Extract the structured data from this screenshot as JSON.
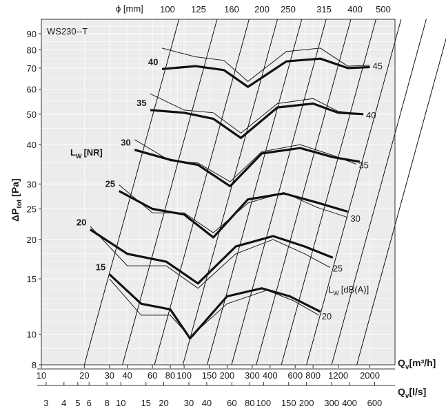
{
  "chart_data": {
    "type": "line",
    "title": "WS230--T",
    "axes": {
      "y": {
        "label_main": "ΔP",
        "label_sub": "tot",
        "label_unit": "[Pa]",
        "scale": "log",
        "range": [
          8,
          100
        ],
        "ticks": [
          8,
          10,
          15,
          20,
          25,
          30,
          40,
          50,
          60,
          70,
          80,
          90
        ]
      },
      "x_m3h": {
        "label_main": "Q",
        "label_sub": "v",
        "label_unit": "[m³/h]",
        "scale": "log",
        "range": [
          10,
          3000
        ],
        "ticks": [
          10,
          20,
          30,
          40,
          60,
          80,
          100,
          150,
          200,
          300,
          400,
          600,
          800,
          1200,
          2000
        ]
      },
      "x_ls": {
        "label_main": "Q",
        "label_sub": "v",
        "label_unit": "[l/s]",
        "scale": "log",
        "ticks": [
          3,
          4,
          5,
          6,
          8,
          10,
          15,
          20,
          30,
          40,
          60,
          80,
          100,
          150,
          200,
          300,
          400,
          600
        ]
      },
      "x_diameter": {
        "label": "ϕ [mm]",
        "ticks": [
          100,
          125,
          160,
          200,
          250,
          315,
          400,
          500
        ]
      }
    },
    "grid": true,
    "legend_lw_nr": "L",
    "legend_lw_nr_sub": "W",
    "legend_lw_nr_unit": "[NR]",
    "legend_lw_dba": "L",
    "legend_lw_dba_sub": "W",
    "legend_lw_dba_unit": "[dB(A)]",
    "nr_series": [
      {
        "name": "15",
        "values": [
          [
            30,
            15.5
          ],
          [
            50,
            12.5
          ],
          [
            80,
            12
          ],
          [
            110,
            9.7
          ],
          [
            200,
            13.2
          ],
          [
            350,
            14
          ],
          [
            550,
            13.2
          ],
          [
            900,
            11.8
          ]
        ]
      },
      {
        "name": "20",
        "values": [
          [
            22,
            21.5
          ],
          [
            40,
            18
          ],
          [
            75,
            17
          ],
          [
            125,
            14.5
          ],
          [
            230,
            19
          ],
          [
            420,
            20.5
          ],
          [
            700,
            19
          ],
          [
            1100,
            17.5
          ]
        ]
      },
      {
        "name": "25",
        "values": [
          [
            35,
            28.5
          ],
          [
            60,
            25
          ],
          [
            100,
            24
          ],
          [
            160,
            20.3
          ],
          [
            280,
            26.8
          ],
          [
            500,
            28
          ],
          [
            850,
            26.2
          ],
          [
            1400,
            24.5
          ]
        ]
      },
      {
        "name": "30",
        "values": [
          [
            45,
            38.5
          ],
          [
            80,
            35.8
          ],
          [
            125,
            34.5
          ],
          [
            210,
            29.5
          ],
          [
            350,
            37.5
          ],
          [
            650,
            39
          ],
          [
            1100,
            36.5
          ],
          [
            1700,
            35.3
          ]
        ]
      },
      {
        "name": "35",
        "values": [
          [
            58,
            51.5
          ],
          [
            100,
            50.5
          ],
          [
            160,
            48.3
          ],
          [
            250,
            42
          ],
          [
            450,
            52.5
          ],
          [
            800,
            54
          ],
          [
            1200,
            50.5
          ],
          [
            1800,
            50
          ]
        ]
      },
      {
        "name": "40",
        "values": [
          [
            70,
            69.5
          ],
          [
            120,
            71
          ],
          [
            190,
            69
          ],
          [
            280,
            61
          ],
          [
            520,
            73.5
          ],
          [
            900,
            75
          ],
          [
            1400,
            70
          ],
          [
            2000,
            70.5
          ]
        ]
      }
    ],
    "dba_series": [
      {
        "name": "20",
        "values": [
          [
            30,
            15
          ],
          [
            50,
            11.5
          ],
          [
            80,
            11.5
          ],
          [
            110,
            9.8
          ],
          [
            200,
            12.5
          ],
          [
            380,
            13.8
          ],
          [
            580,
            12.8
          ],
          [
            880,
            11.5
          ]
        ]
      },
      {
        "name": "25",
        "values": [
          [
            22,
            22
          ],
          [
            40,
            16.5
          ],
          [
            75,
            16.5
          ],
          [
            125,
            14
          ],
          [
            230,
            18
          ],
          [
            420,
            20
          ],
          [
            700,
            18
          ],
          [
            1050,
            16.3
          ]
        ]
      },
      {
        "name": "30",
        "values": [
          [
            35,
            29.8
          ],
          [
            60,
            24.3
          ],
          [
            100,
            24.3
          ],
          [
            160,
            21
          ],
          [
            280,
            26.1
          ],
          [
            500,
            28.2
          ],
          [
            850,
            25.3
          ],
          [
            1400,
            23.5
          ]
        ]
      },
      {
        "name": "35",
        "values": [
          [
            45,
            41.5
          ],
          [
            80,
            35.5
          ],
          [
            125,
            35
          ],
          [
            210,
            30.5
          ],
          [
            350,
            38
          ],
          [
            650,
            40
          ],
          [
            1100,
            37
          ],
          [
            1600,
            34.7
          ]
        ]
      },
      {
        "name": "40",
        "values": [
          [
            58,
            58
          ],
          [
            100,
            51.5
          ],
          [
            160,
            50.5
          ],
          [
            250,
            43.5
          ],
          [
            450,
            54
          ],
          [
            800,
            56
          ],
          [
            1200,
            51
          ],
          [
            1800,
            50
          ]
        ]
      },
      {
        "name": "45",
        "values": [
          [
            70,
            81
          ],
          [
            120,
            76
          ],
          [
            190,
            74
          ],
          [
            280,
            63.5
          ],
          [
            520,
            79
          ],
          [
            900,
            81
          ],
          [
            1400,
            71
          ],
          [
            2000,
            71.5
          ]
        ]
      }
    ]
  }
}
